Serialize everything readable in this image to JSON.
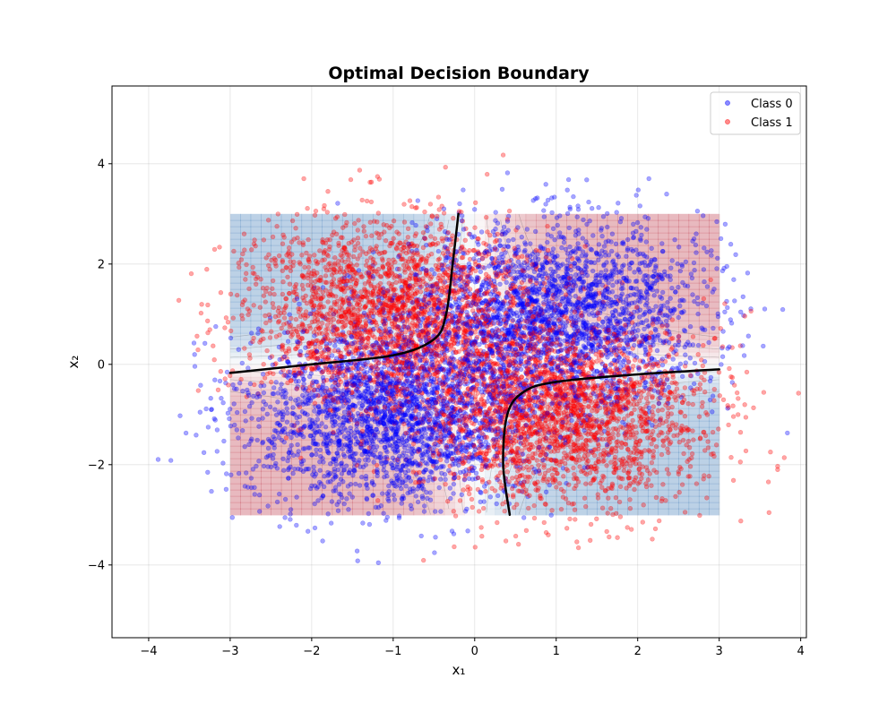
{
  "chart_data": {
    "type": "scatter",
    "title": "Optimal Decision Boundary",
    "xlabel": "x₁",
    "ylabel": "x₂",
    "xlim": [
      -4.45,
      4.07
    ],
    "ylim": [
      -5.45,
      5.55
    ],
    "xticks": [
      -4,
      -3,
      -2,
      -1,
      0,
      1,
      2,
      3,
      4
    ],
    "yticks": [
      -4,
      -2,
      0,
      2,
      4
    ],
    "grid": true,
    "legend_position": "top-right",
    "decision_region": {
      "x_range": [
        -3,
        3
      ],
      "y_range": [
        -3,
        3
      ],
      "colormap": "RdBu",
      "opacity": 0.3,
      "contour_levels": [
        -0.75,
        -0.5,
        -0.25,
        0.25,
        0.5,
        0.75
      ]
    },
    "series": [
      {
        "name": "Class 0",
        "color": "#0000ff",
        "opacity": 0.35,
        "n_points": 5000,
        "clusters": [
          {
            "center": [
              -1.0,
              -1.0
            ],
            "std": [
              0.9,
              0.9
            ],
            "weight": 0.5
          },
          {
            "center": [
              1.0,
              1.0
            ],
            "std": [
              0.9,
              0.9
            ],
            "weight": 0.5
          }
        ]
      },
      {
        "name": "Class 1",
        "color": "#ff0000",
        "opacity": 0.35,
        "n_points": 5000,
        "clusters": [
          {
            "center": [
              -1.0,
              1.0
            ],
            "std": [
              0.9,
              0.9
            ],
            "weight": 0.5
          },
          {
            "center": [
              1.0,
              -1.0
            ],
            "std": [
              0.9,
              0.9
            ],
            "weight": 0.5
          }
        ]
      }
    ],
    "boundary_curves": [
      {
        "color": "#000000",
        "points": [
          [
            -3,
            -0.17
          ],
          [
            -2,
            0.0
          ],
          [
            -1,
            0.18
          ],
          [
            -0.5,
            0.5
          ],
          [
            -0.35,
            1.0
          ],
          [
            -0.27,
            2.0
          ],
          [
            -0.2,
            3.0
          ]
        ]
      },
      {
        "color": "#000000",
        "points": [
          [
            0.43,
            -3.0
          ],
          [
            0.35,
            -2.0
          ],
          [
            0.4,
            -1.0
          ],
          [
            0.6,
            -0.55
          ],
          [
            1.0,
            -0.35
          ],
          [
            2.0,
            -0.2
          ],
          [
            3.0,
            -0.1
          ]
        ]
      }
    ]
  }
}
